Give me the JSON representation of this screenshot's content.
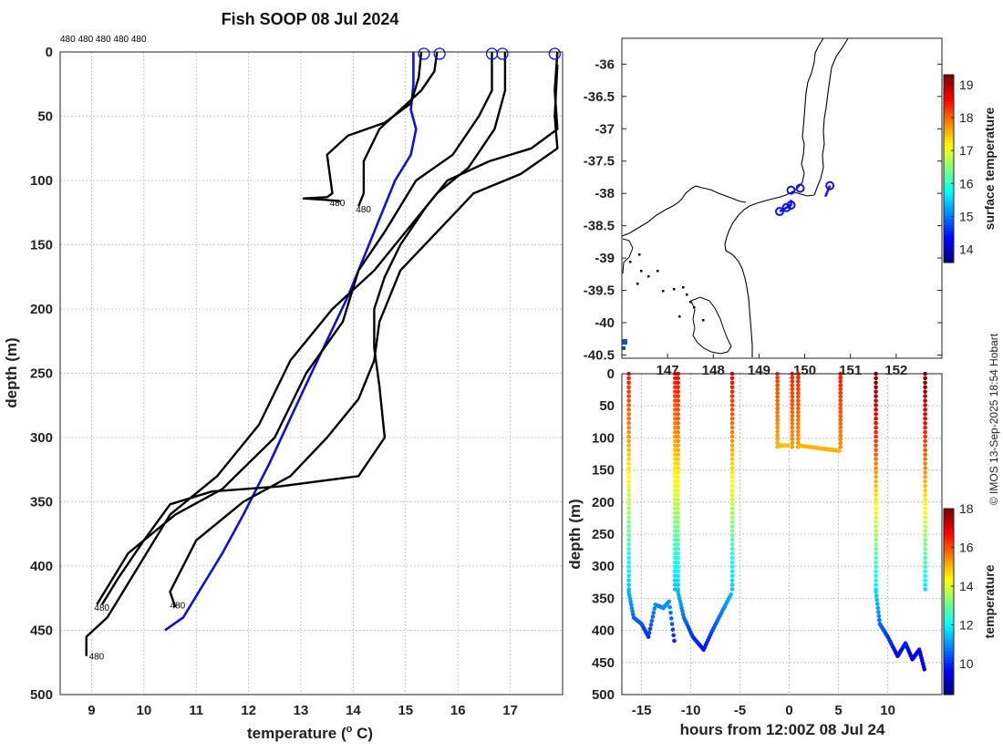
{
  "title": "Fish SOOP 08 Jul 2024",
  "credit": "© IMOS 13-Sep-2025 18:54 Hobart",
  "top_label": "480 480 480 480 480",
  "colors": {
    "profile": "#000000",
    "mean": "#1010dd",
    "marker": "#1010ff"
  },
  "chart_data": [
    {
      "id": "profiles",
      "type": "line",
      "xlabel": "temperature (",
      "xlabel_sup": "o",
      "xlabel_unit": " C)",
      "ylabel": "depth (m)",
      "xlim": [
        8.4,
        18.0
      ],
      "ylim": [
        500,
        0
      ],
      "xticks": [
        9,
        10,
        11,
        12,
        13,
        14,
        15,
        16,
        17
      ],
      "yticks": [
        0,
        50,
        100,
        150,
        200,
        250,
        300,
        350,
        400,
        450,
        500
      ],
      "surface_markers": [
        15.35,
        15.65,
        16.65,
        16.85,
        17.85
      ],
      "profile_labels": [
        {
          "text": "480",
          "t": 13.55,
          "d": 117
        },
        {
          "text": "480",
          "t": 14.05,
          "d": 122
        },
        {
          "text": "480",
          "t": 9.05,
          "d": 432
        },
        {
          "text": "480",
          "t": 10.5,
          "d": 430
        },
        {
          "text": "480",
          "t": 8.95,
          "d": 470
        }
      ],
      "series": [
        {
          "name": "mean",
          "points": [
            [
              15.15,
              0
            ],
            [
              15.15,
              25
            ],
            [
              15.1,
              45
            ],
            [
              15.2,
              60
            ],
            [
              15.1,
              80
            ],
            [
              14.8,
              100
            ],
            [
              14.5,
              130
            ],
            [
              14.2,
              160
            ],
            [
              13.9,
              190
            ],
            [
              13.55,
              220
            ],
            [
              13.2,
              250
            ],
            [
              12.8,
              285
            ],
            [
              12.4,
              320
            ],
            [
              11.9,
              360
            ],
            [
              11.5,
              390
            ],
            [
              11.05,
              420
            ],
            [
              10.75,
              440
            ],
            [
              10.4,
              450
            ]
          ]
        },
        {
          "name": "p1",
          "points": [
            [
              15.3,
              0
            ],
            [
              15.25,
              20
            ],
            [
              15.1,
              40
            ],
            [
              14.6,
              55
            ],
            [
              13.9,
              65
            ],
            [
              13.5,
              80
            ],
            [
              13.6,
              110
            ],
            [
              13.5,
              113
            ],
            [
              13.05,
              114
            ],
            [
              13.45,
              115
            ],
            [
              13.75,
              116
            ]
          ]
        },
        {
          "name": "p2",
          "points": [
            [
              15.6,
              0
            ],
            [
              15.55,
              15
            ],
            [
              15.3,
              30
            ],
            [
              14.9,
              45
            ],
            [
              14.5,
              60
            ],
            [
              14.2,
              85
            ],
            [
              14.2,
              110
            ],
            [
              14.1,
              120
            ]
          ]
        },
        {
          "name": "p3",
          "points": [
            [
              16.65,
              0
            ],
            [
              16.65,
              30
            ],
            [
              16.4,
              50
            ],
            [
              15.9,
              80
            ],
            [
              15.2,
              100
            ],
            [
              14.6,
              140
            ],
            [
              14.1,
              170
            ],
            [
              13.8,
              210
            ],
            [
              13.1,
              250
            ],
            [
              12.5,
              300
            ],
            [
              11.5,
              340
            ],
            [
              10.6,
              360
            ],
            [
              9.7,
              390
            ],
            [
              9.1,
              430
            ]
          ]
        },
        {
          "name": "p4",
          "points": [
            [
              16.9,
              0
            ],
            [
              16.9,
              30
            ],
            [
              16.7,
              60
            ],
            [
              16.2,
              90
            ],
            [
              15.6,
              110
            ],
            [
              15.0,
              140
            ],
            [
              14.4,
              170
            ],
            [
              13.6,
              200
            ],
            [
              12.8,
              240
            ],
            [
              12.2,
              290
            ],
            [
              11.4,
              330
            ],
            [
              10.5,
              360
            ],
            [
              9.9,
              400
            ],
            [
              9.3,
              440
            ],
            [
              8.9,
              455
            ],
            [
              8.9,
              470
            ]
          ]
        },
        {
          "name": "p5",
          "points": [
            [
              17.9,
              0
            ],
            [
              17.85,
              30
            ],
            [
              17.9,
              60
            ],
            [
              17.4,
              75
            ],
            [
              16.6,
              85
            ],
            [
              15.8,
              100
            ],
            [
              15.4,
              120
            ],
            [
              14.9,
              150
            ],
            [
              14.6,
              175
            ],
            [
              14.4,
              200
            ],
            [
              14.4,
              230
            ],
            [
              14.5,
              260
            ],
            [
              14.6,
              300
            ],
            [
              14.1,
              330
            ],
            [
              12.6,
              338
            ],
            [
              11.3,
              342
            ],
            [
              10.5,
              352
            ],
            [
              10.0,
              380
            ],
            [
              9.5,
              410
            ],
            [
              9.2,
              430
            ]
          ]
        },
        {
          "name": "p6",
          "points": [
            [
              17.9,
              10
            ],
            [
              17.85,
              50
            ],
            [
              17.9,
              75
            ],
            [
              17.2,
              95
            ],
            [
              16.3,
              110
            ],
            [
              15.6,
              140
            ],
            [
              14.9,
              170
            ],
            [
              14.5,
              210
            ],
            [
              14.4,
              240
            ],
            [
              14.1,
              270
            ],
            [
              13.5,
              300
            ],
            [
              12.8,
              330
            ],
            [
              11.9,
              350
            ],
            [
              11.0,
              380
            ],
            [
              10.5,
              420
            ],
            [
              10.6,
              432
            ]
          ]
        }
      ]
    },
    {
      "id": "map",
      "type": "scatter",
      "xlim": [
        146.0,
        153.0
      ],
      "ylim": [
        -40.55,
        -35.6
      ],
      "yticks": [
        -36,
        -36.5,
        -37,
        -37.5,
        -38,
        -38.5,
        -39,
        -39.5,
        -40,
        -40.5
      ],
      "xticks": [
        147,
        148,
        149,
        150,
        151,
        152
      ],
      "colorbar": {
        "label": "surface temperature",
        "ticks": [
          14,
          15,
          16,
          17,
          18,
          19
        ],
        "range": [
          13.6,
          19.3
        ]
      },
      "points": [
        [
          149.7,
          -37.95
        ],
        [
          149.9,
          -37.92
        ],
        [
          149.7,
          -38.18
        ],
        [
          149.6,
          -38.22
        ],
        [
          149.45,
          -38.28
        ],
        [
          150.55,
          -37.88
        ]
      ]
    },
    {
      "id": "timeseries",
      "type": "scatter",
      "xlabel": "hours from 12:00Z 08 Jul 24",
      "ylabel": "depth (m)",
      "xlim": [
        -17,
        15.5
      ],
      "ylim": [
        500,
        0
      ],
      "xticks": [
        -15,
        -10,
        -5,
        0,
        5,
        10
      ],
      "yticks": [
        0,
        50,
        100,
        150,
        200,
        250,
        300,
        350,
        400,
        450,
        500
      ],
      "colorbar": {
        "label": "temperature",
        "ticks": [
          10,
          12,
          14,
          16,
          18
        ],
        "range": [
          8.4,
          18.0
        ]
      },
      "casts": [
        {
          "start": -16.3,
          "bottom": -11.3,
          "max_depth": 428
        },
        {
          "start": -11.3,
          "bottom": -8.6,
          "max_depth": 432
        },
        {
          "start": -5.8,
          "bottom": -6.2,
          "max_depth": 340
        },
        {
          "start": -1.2,
          "bottom": 5.3,
          "max_depth": 120
        },
        {
          "start": 8.8,
          "bottom": 13.8,
          "max_depth": 470
        }
      ]
    }
  ]
}
